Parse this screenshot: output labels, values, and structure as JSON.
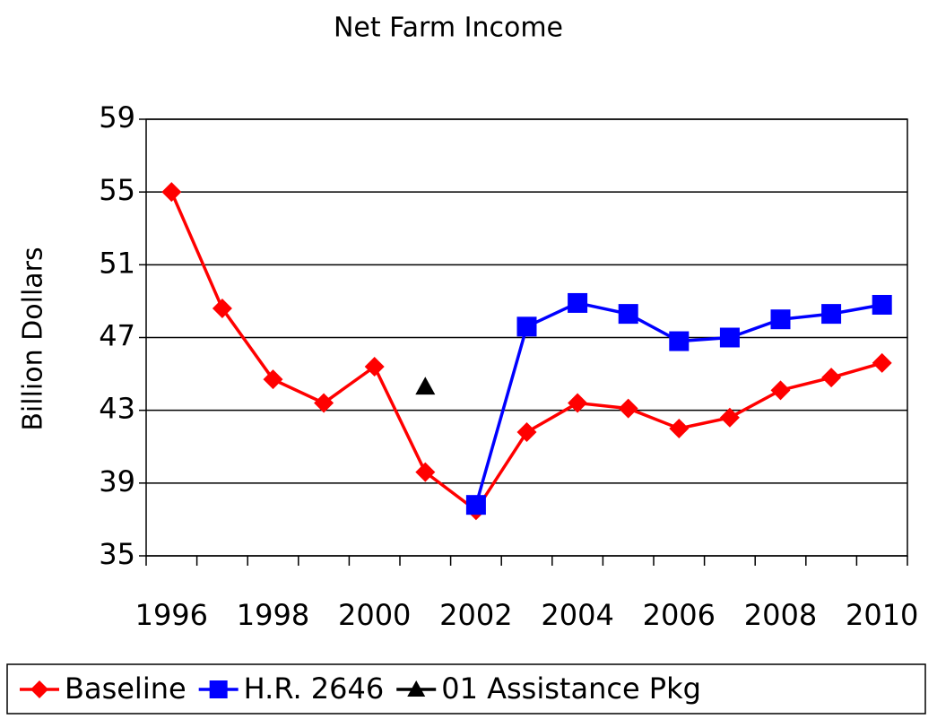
{
  "chart_data": {
    "type": "line",
    "title": "Net Farm Income",
    "y_label": "Billion Dollars",
    "categories": [
      "1996",
      null,
      "1998",
      null,
      "2000",
      null,
      "2002",
      null,
      "2004",
      null,
      "2006",
      null,
      "2008",
      null,
      "2010"
    ],
    "series": [
      {
        "name": "Baseline",
        "color": "#ff0000",
        "marker": "diamond",
        "values": [
          55,
          48.6,
          44.7,
          43.4,
          45.4,
          39.6,
          37.5,
          41.8,
          43.4,
          43.1,
          42.0,
          42.6,
          44.1,
          44.8,
          45.6
        ]
      },
      {
        "name": "H.R. 2646",
        "color": "#0000ff",
        "marker": "square",
        "values": [
          null,
          null,
          null,
          null,
          null,
          null,
          37.8,
          47.6,
          48.9,
          48.3,
          46.8,
          47.0,
          48.0,
          48.3,
          48.8
        ]
      },
      {
        "name": "01 Assistance Pkg",
        "color": "#000000",
        "marker": "triangle",
        "values": [
          null,
          null,
          null,
          null,
          null,
          44.3,
          null,
          null,
          null,
          null,
          null,
          null,
          null,
          null,
          null
        ]
      }
    ],
    "ylim": [
      35,
      59
    ],
    "yticks": [
      35,
      39,
      43,
      47,
      51,
      55,
      59
    ],
    "grid": true,
    "legend": "bottom"
  }
}
